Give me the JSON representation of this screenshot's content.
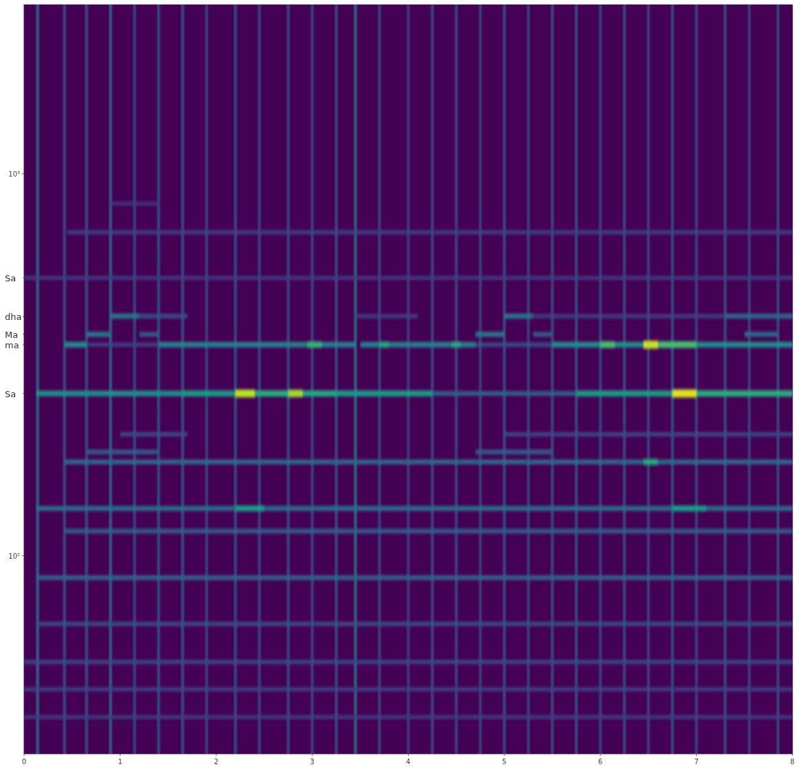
{
  "chart_data": {
    "type": "spectrogram",
    "log": "y",
    "grid": false,
    "xlim": [
      0,
      8
    ],
    "xticks": [
      0,
      1,
      2,
      3,
      4,
      5,
      6,
      7,
      8
    ],
    "ylim": [
      30.3,
      2770
    ],
    "yticks": [
      {
        "value": 100,
        "label": "10²"
      },
      {
        "value": 1000,
        "label": "10³"
      }
    ],
    "annotations": [
      {
        "label": "Sa",
        "value": 534
      },
      {
        "label": "dha",
        "value": 423
      },
      {
        "label": "Ma",
        "value": 380
      },
      {
        "label": "ma",
        "value": 357
      },
      {
        "label": "Sa",
        "value": 266
      }
    ],
    "onsets": [
      {
        "time": 0.14,
        "level": 0.45
      },
      {
        "time": 0.42,
        "level": 0.3
      },
      {
        "time": 0.65,
        "level": 0.3
      },
      {
        "time": 0.9,
        "level": 0.4
      },
      {
        "time": 1.15,
        "level": 0.28
      },
      {
        "time": 1.4,
        "level": 0.3
      },
      {
        "time": 1.65,
        "level": 0.3
      },
      {
        "time": 1.9,
        "level": 0.25
      },
      {
        "time": 2.2,
        "level": 0.3
      },
      {
        "time": 2.45,
        "level": 0.25
      },
      {
        "time": 2.75,
        "level": 0.3
      },
      {
        "time": 3.0,
        "level": 0.25
      },
      {
        "time": 3.25,
        "level": 0.3
      },
      {
        "time": 3.45,
        "level": 0.45
      },
      {
        "time": 3.7,
        "level": 0.25
      },
      {
        "time": 4.0,
        "level": 0.22
      },
      {
        "time": 4.25,
        "level": 0.28
      },
      {
        "time": 4.5,
        "level": 0.25
      },
      {
        "time": 4.75,
        "level": 0.25
      },
      {
        "time": 5.0,
        "level": 0.3
      },
      {
        "time": 5.25,
        "level": 0.25
      },
      {
        "time": 5.5,
        "level": 0.28
      },
      {
        "time": 5.75,
        "level": 0.3
      },
      {
        "time": 6.0,
        "level": 0.25
      },
      {
        "time": 6.25,
        "level": 0.28
      },
      {
        "time": 6.5,
        "level": 0.25
      },
      {
        "time": 6.75,
        "level": 0.3
      },
      {
        "time": 7.0,
        "level": 0.25
      },
      {
        "time": 7.3,
        "level": 0.3
      },
      {
        "time": 7.55,
        "level": 0.25
      },
      {
        "time": 7.85,
        "level": 0.28
      }
    ],
    "bands": [
      {
        "freq": 37.8,
        "start": 0,
        "end": 8,
        "level": 0.18
      },
      {
        "freq": 44.7,
        "start": 0,
        "end": 8,
        "level": 0.2
      },
      {
        "freq": 52.7,
        "start": 0,
        "end": 8,
        "level": 0.22
      },
      {
        "freq": 66.3,
        "start": 0.13,
        "end": 8,
        "level": 0.24
      },
      {
        "freq": 87.6,
        "start": 0.13,
        "end": 8,
        "level": 0.32
      },
      {
        "freq": 116,
        "start": 0.42,
        "end": 8,
        "level": 0.3
      },
      {
        "freq": 133,
        "start": 0.13,
        "end": 8,
        "level": 0.36
      },
      {
        "freq": 133,
        "start": 2.2,
        "end": 2.5,
        "level": 0.55
      },
      {
        "freq": 133,
        "start": 6.75,
        "end": 7.1,
        "level": 0.55
      },
      {
        "freq": 176,
        "start": 0.42,
        "end": 8,
        "level": 0.34
      },
      {
        "freq": 176,
        "start": 6.45,
        "end": 6.6,
        "level": 0.6
      },
      {
        "freq": 187,
        "start": 0.65,
        "end": 1.4,
        "level": 0.3
      },
      {
        "freq": 187,
        "start": 4.7,
        "end": 5.5,
        "level": 0.3
      },
      {
        "freq": 208,
        "start": 1.0,
        "end": 1.7,
        "level": 0.24
      },
      {
        "freq": 208,
        "start": 5.0,
        "end": 8,
        "level": 0.22
      },
      {
        "freq": 266,
        "start": 0.13,
        "end": 1.65,
        "level": 0.5
      },
      {
        "freq": 266,
        "start": 1.65,
        "end": 2.2,
        "level": 0.55
      },
      {
        "freq": 266,
        "start": 2.2,
        "end": 2.75,
        "level": 0.62
      },
      {
        "freq": 266,
        "start": 2.75,
        "end": 3.25,
        "level": 0.6
      },
      {
        "freq": 266,
        "start": 3.25,
        "end": 4.25,
        "level": 0.55
      },
      {
        "freq": 266,
        "start": 4.25,
        "end": 5.75,
        "level": 0.32
      },
      {
        "freq": 266,
        "start": 5.75,
        "end": 6.25,
        "level": 0.55
      },
      {
        "freq": 266,
        "start": 6.25,
        "end": 6.75,
        "level": 0.55
      },
      {
        "freq": 266,
        "start": 6.75,
        "end": 8,
        "level": 0.62
      },
      {
        "freq": 266,
        "start": 2.2,
        "end": 2.4,
        "level": 0.9
      },
      {
        "freq": 266,
        "start": 2.75,
        "end": 2.9,
        "level": 0.85
      },
      {
        "freq": 266,
        "start": 6.75,
        "end": 7.0,
        "level": 0.95
      },
      {
        "freq": 357,
        "start": 0.42,
        "end": 0.65,
        "level": 0.5
      },
      {
        "freq": 357,
        "start": 0.65,
        "end": 1.4,
        "level": 0.2
      },
      {
        "freq": 357,
        "start": 1.4,
        "end": 3.45,
        "level": 0.45
      },
      {
        "freq": 357,
        "start": 3.5,
        "end": 4.7,
        "level": 0.45
      },
      {
        "freq": 357,
        "start": 4.7,
        "end": 5.5,
        "level": 0.25
      },
      {
        "freq": 357,
        "start": 5.5,
        "end": 8,
        "level": 0.5
      },
      {
        "freq": 357,
        "start": 2.95,
        "end": 3.1,
        "level": 0.65
      },
      {
        "freq": 357,
        "start": 3.7,
        "end": 3.8,
        "level": 0.6
      },
      {
        "freq": 357,
        "start": 4.45,
        "end": 4.55,
        "level": 0.6
      },
      {
        "freq": 357,
        "start": 6.0,
        "end": 6.15,
        "level": 0.7
      },
      {
        "freq": 357,
        "start": 6.6,
        "end": 7.0,
        "level": 0.7
      },
      {
        "freq": 357,
        "start": 6.45,
        "end": 6.6,
        "level": 0.92
      },
      {
        "freq": 380,
        "start": 0.65,
        "end": 0.9,
        "level": 0.4
      },
      {
        "freq": 380,
        "start": 1.2,
        "end": 1.4,
        "level": 0.3
      },
      {
        "freq": 380,
        "start": 4.7,
        "end": 5.0,
        "level": 0.4
      },
      {
        "freq": 380,
        "start": 5.3,
        "end": 5.5,
        "level": 0.3
      },
      {
        "freq": 380,
        "start": 7.5,
        "end": 7.85,
        "level": 0.35
      },
      {
        "freq": 424,
        "start": 0.9,
        "end": 1.2,
        "level": 0.4
      },
      {
        "freq": 424,
        "start": 1.2,
        "end": 1.7,
        "level": 0.25
      },
      {
        "freq": 424,
        "start": 3.45,
        "end": 4.1,
        "level": 0.2
      },
      {
        "freq": 424,
        "start": 5.0,
        "end": 5.3,
        "level": 0.4
      },
      {
        "freq": 424,
        "start": 5.3,
        "end": 7.3,
        "level": 0.2
      },
      {
        "freq": 424,
        "start": 7.3,
        "end": 8,
        "level": 0.35
      },
      {
        "freq": 534,
        "start": 0,
        "end": 8,
        "level": 0.18
      },
      {
        "freq": 703,
        "start": 0.45,
        "end": 8,
        "level": 0.2
      },
      {
        "freq": 836,
        "start": 0.9,
        "end": 1.4,
        "level": 0.15
      }
    ]
  }
}
